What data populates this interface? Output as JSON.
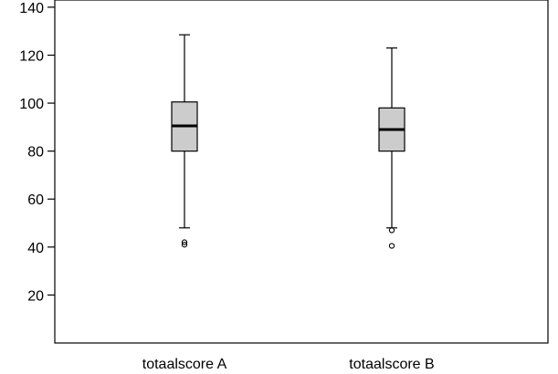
{
  "chart_data": {
    "type": "box",
    "title": "",
    "xlabel": "",
    "ylabel": "",
    "ylim": [
      0,
      143
    ],
    "yticks": [
      20,
      40,
      60,
      80,
      100,
      120,
      140
    ],
    "grid": false,
    "categories": [
      "totaalscore A",
      "totaalscore B"
    ],
    "series": [
      {
        "min": 48,
        "q1": 80,
        "median": 90.5,
        "q3": 100.5,
        "max": 128.5,
        "outliers": [
          41,
          42
        ]
      },
      {
        "min": 48,
        "q1": 80,
        "median": 89,
        "q3": 98,
        "max": 123,
        "outliers": [
          47,
          40.5
        ]
      }
    ],
    "colors": {
      "box_fill": "#cccccc",
      "line": "#000000",
      "median": "#000000"
    }
  }
}
